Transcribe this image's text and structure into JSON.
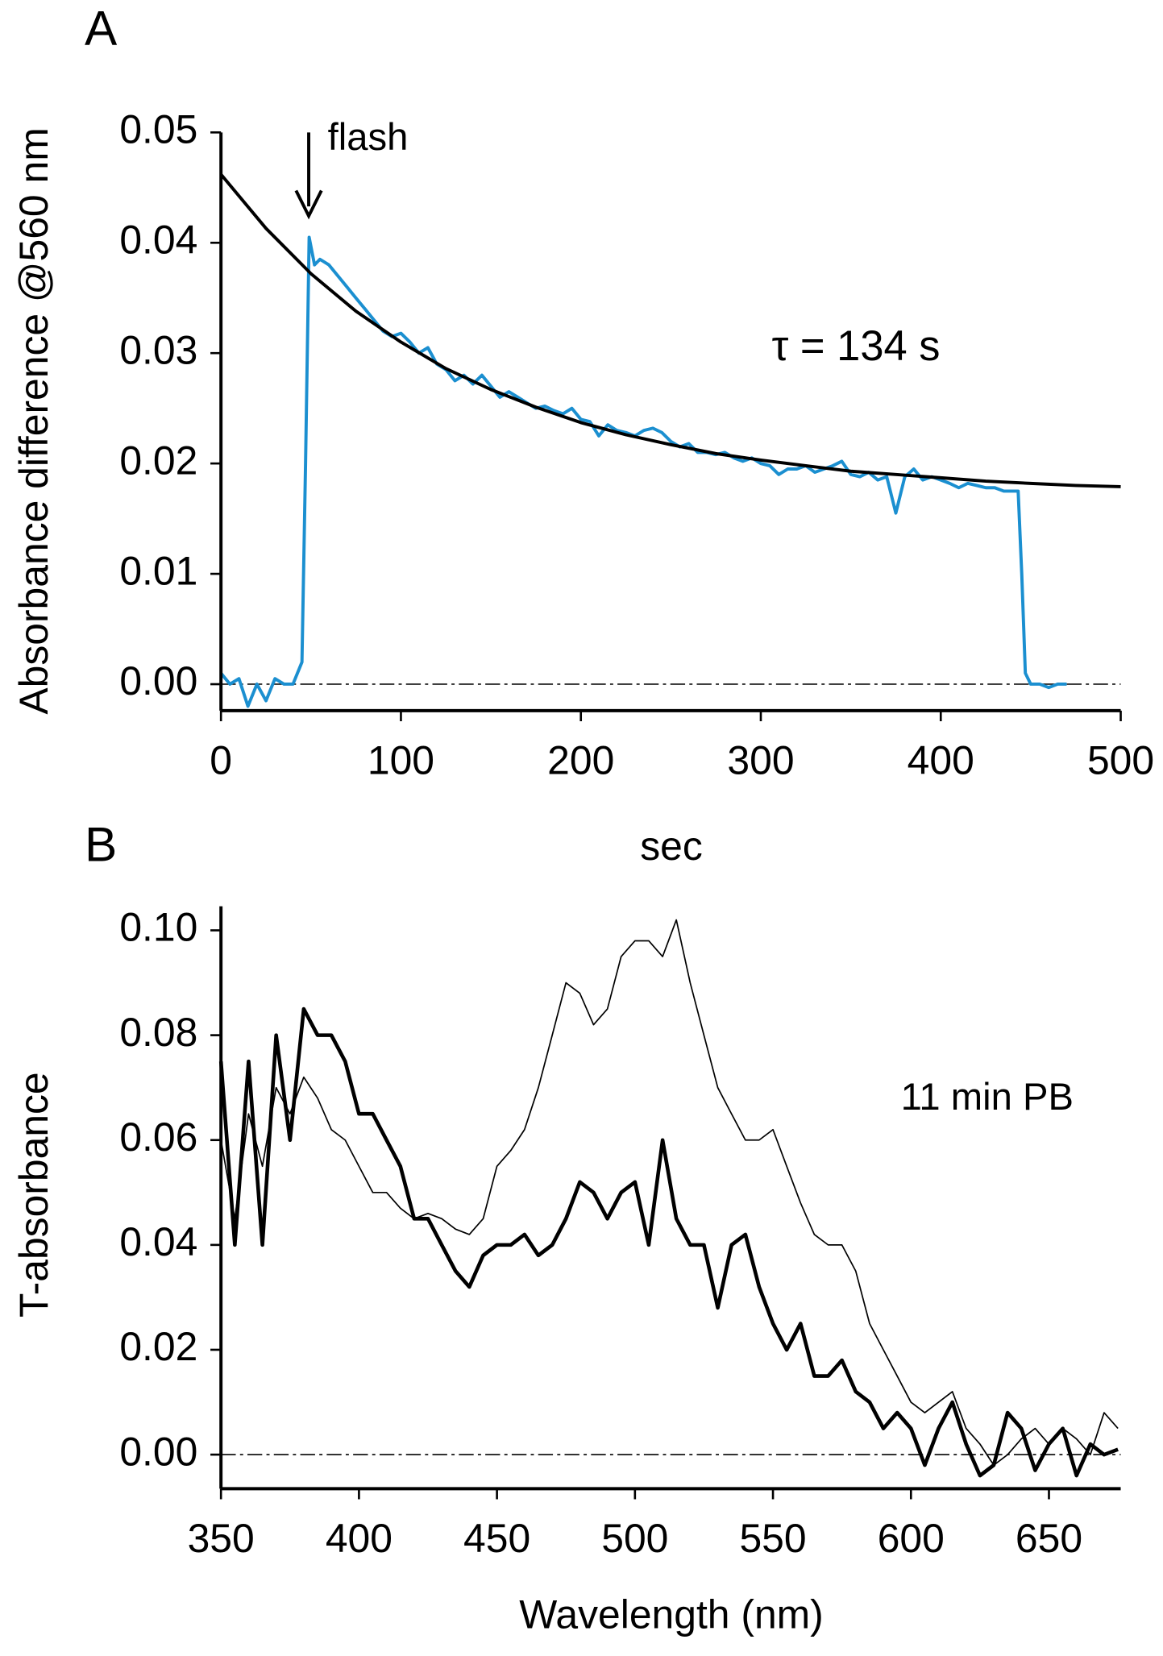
{
  "chart_data": [
    {
      "type": "line",
      "panel": "A",
      "x_label": "sec",
      "y_label": "Absorbance difference @560 nm",
      "annotations": [
        "flash",
        "τ  = 134 s"
      ],
      "xlim": [
        0,
        500
      ],
      "ylim": [
        -0.0024,
        0.05
      ],
      "xticks": [
        0,
        100,
        200,
        300,
        400,
        500
      ],
      "yticks": [
        {
          "value": 0,
          "label": "0.00"
        },
        0.01,
        0.02,
        0.03,
        0.04,
        0.05
      ],
      "reference_line": 0,
      "series": [
        {
          "color": "#1b8fd0",
          "line_width": 3,
          "x": [
            0,
            5,
            10,
            15,
            20,
            25,
            30,
            35,
            40,
            45,
            47,
            49,
            52,
            55,
            60,
            65,
            70,
            75,
            80,
            85,
            90,
            95,
            100,
            105,
            110,
            115,
            120,
            125,
            130,
            135,
            140,
            145,
            150,
            155,
            160,
            165,
            170,
            175,
            180,
            185,
            190,
            195,
            200,
            205,
            210,
            215,
            220,
            225,
            230,
            235,
            240,
            245,
            250,
            255,
            260,
            265,
            270,
            275,
            280,
            285,
            290,
            295,
            300,
            305,
            310,
            315,
            320,
            325,
            330,
            335,
            340,
            345,
            350,
            355,
            360,
            365,
            370,
            375,
            380,
            385,
            390,
            395,
            400,
            405,
            410,
            415,
            420,
            425,
            430,
            435,
            440,
            443,
            445,
            447,
            450,
            455,
            460,
            465,
            470
          ],
          "values": [
            0.001,
            0.0,
            0.0005,
            -0.002,
            0.0,
            -0.0015,
            0.0005,
            0.0,
            0.0,
            0.002,
            0.02,
            0.0405,
            0.038,
            0.0385,
            0.038,
            0.037,
            0.036,
            0.035,
            0.034,
            0.033,
            0.032,
            0.0315,
            0.0318,
            0.031,
            0.03,
            0.0305,
            0.029,
            0.0285,
            0.0275,
            0.028,
            0.0272,
            0.028,
            0.027,
            0.026,
            0.0265,
            0.026,
            0.0255,
            0.025,
            0.0252,
            0.0248,
            0.0245,
            0.025,
            0.024,
            0.0238,
            0.0225,
            0.0235,
            0.023,
            0.0228,
            0.0225,
            0.023,
            0.0232,
            0.0228,
            0.022,
            0.0215,
            0.0218,
            0.021,
            0.021,
            0.0208,
            0.021,
            0.0205,
            0.0202,
            0.0205,
            0.02,
            0.0198,
            0.019,
            0.0195,
            0.0195,
            0.0198,
            0.0192,
            0.0195,
            0.0198,
            0.0202,
            0.019,
            0.0188,
            0.0192,
            0.0185,
            0.0188,
            0.0155,
            0.0188,
            0.0195,
            0.0185,
            0.0188,
            0.0185,
            0.0182,
            0.0178,
            0.0182,
            0.018,
            0.0178,
            0.0178,
            0.0175,
            0.0175,
            0.0175,
            0.01,
            0.001,
            0.0,
            0.0,
            -0.0003,
            0.0,
            0.0
          ]
        },
        {
          "color": "#000000",
          "line_width": 3,
          "x": [
            0,
            25,
            50,
            75,
            100,
            125,
            150,
            175,
            200,
            225,
            250,
            275,
            300,
            325,
            350,
            375,
            400,
            425,
            450,
            475,
            500
          ],
          "values": [
            0.0462,
            0.0413,
            0.0372,
            0.0338,
            0.031,
            0.0286,
            0.0267,
            0.0251,
            0.0237,
            0.0226,
            0.0217,
            0.0209,
            0.0203,
            0.0198,
            0.0193,
            0.019,
            0.0187,
            0.0184,
            0.0182,
            0.018,
            0.0179
          ]
        }
      ]
    },
    {
      "type": "line",
      "panel": "B",
      "x_label": "Wavelength (nm)",
      "y_label": "T-absorbance",
      "annotations": [
        "11 min PB"
      ],
      "xlim": [
        350,
        676
      ],
      "ylim": [
        -0.0065,
        0.1046
      ],
      "xticks": [
        350,
        400,
        450,
        500,
        550,
        600,
        650
      ],
      "yticks": [
        {
          "value": 0,
          "label": "0.00"
        },
        0.02,
        0.04,
        0.06,
        0.08,
        {
          "value": 0.1,
          "label": "0.10"
        }
      ],
      "reference_line": 0,
      "series": [
        {
          "color": "#000000",
          "line_width": 1.3,
          "x": [
            350,
            355,
            360,
            365,
            370,
            375,
            380,
            385,
            390,
            395,
            400,
            405,
            410,
            415,
            420,
            425,
            430,
            435,
            440,
            445,
            450,
            455,
            460,
            465,
            470,
            475,
            480,
            485,
            490,
            495,
            500,
            505,
            510,
            515,
            520,
            525,
            530,
            535,
            540,
            545,
            550,
            555,
            560,
            565,
            570,
            575,
            580,
            585,
            590,
            595,
            600,
            605,
            610,
            615,
            620,
            625,
            630,
            635,
            640,
            645,
            650,
            655,
            660,
            665,
            670,
            675
          ],
          "values": [
            0.06,
            0.045,
            0.065,
            0.055,
            0.07,
            0.065,
            0.072,
            0.068,
            0.062,
            0.06,
            0.055,
            0.05,
            0.05,
            0.047,
            0.045,
            0.046,
            0.045,
            0.043,
            0.042,
            0.045,
            0.055,
            0.058,
            0.062,
            0.07,
            0.08,
            0.09,
            0.088,
            0.082,
            0.085,
            0.095,
            0.098,
            0.098,
            0.095,
            0.102,
            0.09,
            0.08,
            0.07,
            0.065,
            0.06,
            0.06,
            0.062,
            0.055,
            0.048,
            0.042,
            0.04,
            0.04,
            0.035,
            0.025,
            0.02,
            0.015,
            0.01,
            0.008,
            0.01,
            0.012,
            0.005,
            0.002,
            -0.002,
            0.0,
            0.003,
            0.005,
            0.002,
            0.005,
            0.003,
            0.0,
            0.008,
            0.005
          ]
        },
        {
          "color": "#000000",
          "line_width": 3.5,
          "x": [
            350,
            355,
            360,
            365,
            370,
            375,
            380,
            385,
            390,
            395,
            400,
            405,
            410,
            415,
            420,
            425,
            430,
            435,
            440,
            445,
            450,
            455,
            460,
            465,
            470,
            475,
            480,
            485,
            490,
            495,
            500,
            505,
            510,
            515,
            520,
            525,
            530,
            535,
            540,
            545,
            550,
            555,
            560,
            565,
            570,
            575,
            580,
            585,
            590,
            595,
            600,
            605,
            610,
            615,
            620,
            625,
            630,
            635,
            640,
            645,
            650,
            655,
            660,
            665,
            670,
            675
          ],
          "values": [
            0.075,
            0.04,
            0.075,
            0.04,
            0.08,
            0.06,
            0.085,
            0.08,
            0.08,
            0.075,
            0.065,
            0.065,
            0.06,
            0.055,
            0.045,
            0.045,
            0.04,
            0.035,
            0.032,
            0.038,
            0.04,
            0.04,
            0.042,
            0.038,
            0.04,
            0.045,
            0.052,
            0.05,
            0.045,
            0.05,
            0.052,
            0.04,
            0.06,
            0.045,
            0.04,
            0.04,
            0.028,
            0.04,
            0.042,
            0.032,
            0.025,
            0.02,
            0.025,
            0.015,
            0.015,
            0.018,
            0.012,
            0.01,
            0.005,
            0.008,
            0.005,
            -0.002,
            0.005,
            0.01,
            0.002,
            -0.004,
            -0.002,
            0.008,
            0.005,
            -0.003,
            0.002,
            0.005,
            -0.004,
            0.002,
            0.0,
            0.001
          ]
        }
      ]
    }
  ]
}
